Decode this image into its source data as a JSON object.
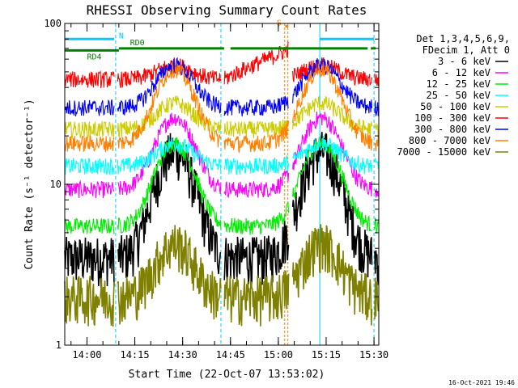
{
  "chart_data": {
    "type": "line",
    "title": "RHESSI Observing Summary Count Rates",
    "xlabel": "Start Time (22-Oct-07 13:53:02)",
    "ylabel": "Count Rate (s⁻¹ detector⁻¹)",
    "y_scale": "log",
    "ylim": [
      1,
      100
    ],
    "xlim": [
      "13:53:02",
      "15:31:30"
    ],
    "x_ticks": [
      "14:00",
      "14:15",
      "14:30",
      "14:45",
      "15:00",
      "15:15",
      "15:30"
    ],
    "y_ticks": [
      "1",
      "10",
      "100"
    ],
    "legend_header": [
      "Det 1,3,4,5,6,9,",
      "FDecim 1, Att 0"
    ],
    "legend_position": "right",
    "timestamp": "16-Oct-2021 19:46",
    "series": [
      {
        "name": "3 - 6 keV",
        "color": "#000000",
        "baseline": 3.5,
        "peak": 16.0
      },
      {
        "name": "6 - 12 keV",
        "color": "#ff00ff",
        "baseline": 9.3,
        "peak": 26.0
      },
      {
        "name": "12 - 25 keV",
        "color": "#00ee00",
        "baseline": 5.5,
        "peak": 18.0
      },
      {
        "name": "25 - 50 keV",
        "color": "#00ffff",
        "baseline": 13.0,
        "peak": 18.0
      },
      {
        "name": "50 - 100 keV",
        "color": "#cccc00",
        "baseline": 22.0,
        "peak": 32.0
      },
      {
        "name": "100 - 300 keV",
        "color": "#ff0000",
        "baseline": 45.0,
        "peak": 55.0
      },
      {
        "name": "300 - 800 keV",
        "color": "#0000ff",
        "baseline": 30.0,
        "peak": 55.0
      },
      {
        "name": "800 - 7000 keV",
        "color": "#ff8000",
        "baseline": 18.0,
        "peak": 52.0
      },
      {
        "name": "7000 - 15000 keV",
        "color": "#808000",
        "baseline": 2.0,
        "peak": 4.3
      }
    ],
    "flags": [
      {
        "label": "N",
        "color": "#00ccff",
        "level": 80,
        "segments": [
          [
            "13:53:02",
            "14:08:30"
          ],
          [
            "15:13:00",
            "15:30:00"
          ]
        ]
      },
      {
        "label": "RD0",
        "color": "#008000",
        "level": 70,
        "segments": [
          [
            "14:10:00",
            "14:43:00"
          ],
          [
            "14:45:00",
            "15:04:00"
          ],
          [
            "15:04:00",
            "15:28:00"
          ],
          [
            "15:29:00",
            "15:30:30"
          ]
        ]
      },
      {
        "label": "RD4",
        "color": "#008000",
        "level": 68,
        "segments": [
          [
            "13:53:02",
            "14:10:00"
          ]
        ]
      },
      {
        "label": "S",
        "color": "#ff8000",
        "level": 96,
        "segments": [
          [
            "15:02:10",
            "15:03:10"
          ]
        ]
      }
    ],
    "night_boundaries": [
      "14:09:00",
      "14:42:00",
      "15:30:00"
    ],
    "saa_boundaries": [
      "13:53:02",
      "15:13:00"
    ],
    "vertical_markers": [
      "15:02:00",
      "15:03:00"
    ]
  }
}
